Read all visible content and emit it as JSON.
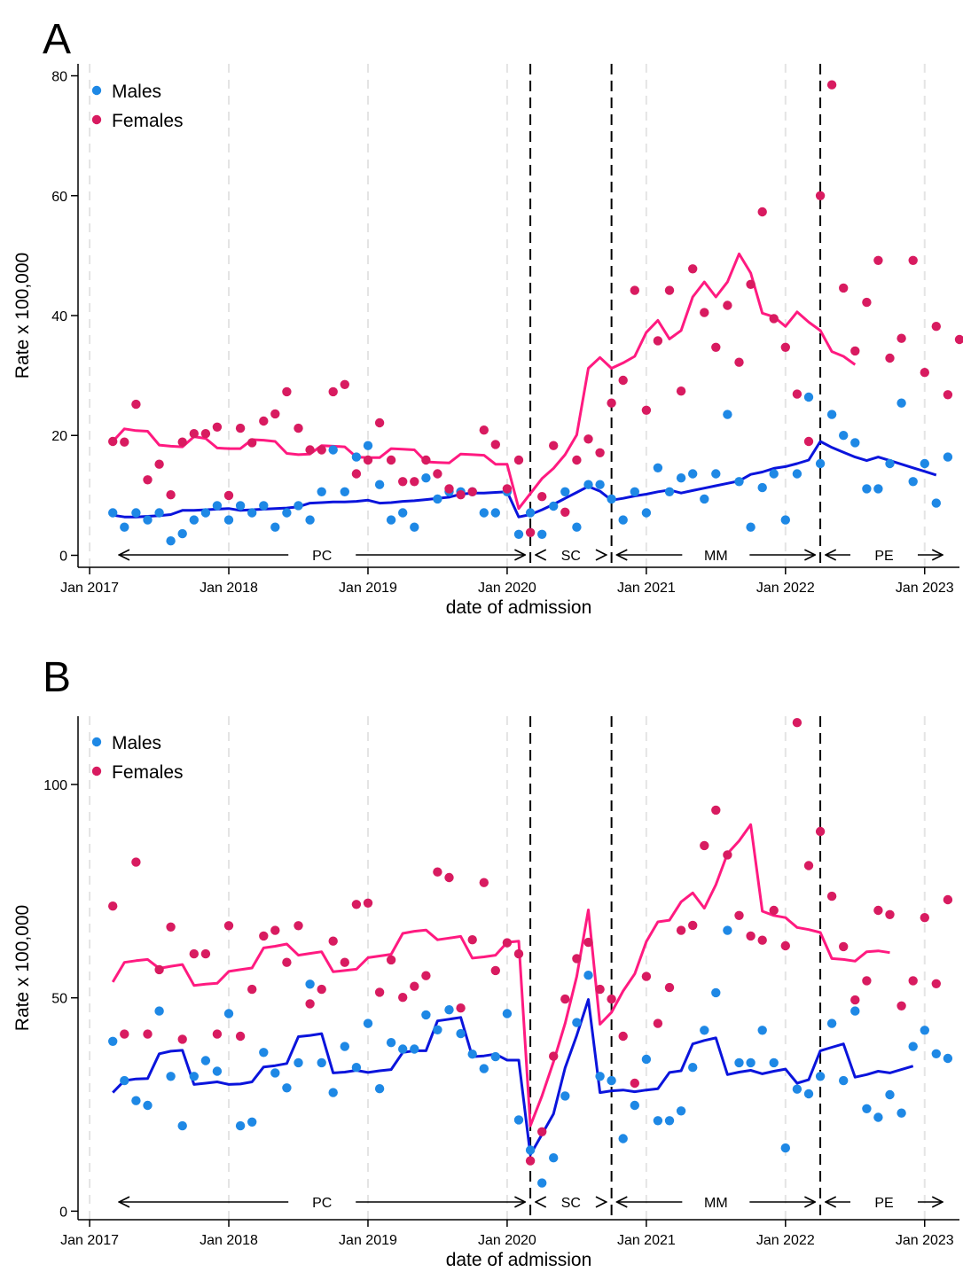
{
  "chart_data": [
    {
      "panel_label": "A",
      "type": "scatter",
      "xlabel": "date of admission",
      "ylabel": "Rate x 100,000",
      "xlim": [
        "2016-12",
        "2023-04"
      ],
      "ylim": [
        -2,
        82
      ],
      "yticks": [
        0,
        20,
        40,
        60,
        80
      ],
      "xticks": [
        {
          "date": "2017-01",
          "label": "Jan 2017"
        },
        {
          "date": "2018-01",
          "label": "Jan 2018"
        },
        {
          "date": "2019-01",
          "label": "Jan 2019"
        },
        {
          "date": "2020-01",
          "label": "Jan 2020"
        },
        {
          "date": "2021-01",
          "label": "Jan 2021"
        },
        {
          "date": "2022-01",
          "label": "Jan 2022"
        },
        {
          "date": "2023-01",
          "label": "Jan 2023"
        }
      ],
      "grid": "vertical dashed at January ticks",
      "legend_position": "top-left",
      "period_breaks": [
        "2020-03",
        "2020-10",
        "2022-04"
      ],
      "periods": [
        {
          "label": "PC",
          "start": "2017-04",
          "end": "2020-03"
        },
        {
          "label": "SC",
          "start": "2020-03",
          "end": "2020-10"
        },
        {
          "label": "MM",
          "start": "2020-10",
          "end": "2022-04"
        },
        {
          "label": "PE",
          "start": "2022-04",
          "end": "2023-03"
        }
      ],
      "start_month": "2017-03",
      "series": [
        {
          "name": "Males",
          "color": "#1e88e5",
          "line_color": "#0a14dc",
          "points": [
            7.1,
            4.7,
            7.1,
            5.9,
            7.1,
            2.4,
            3.6,
            5.9,
            7.1,
            8.3,
            5.9,
            8.3,
            7.1,
            8.3,
            4.7,
            7.1,
            8.3,
            5.9,
            10.6,
            17.6,
            10.6,
            16.4,
            18.3,
            11.8,
            5.9,
            7.1,
            4.7,
            12.9,
            9.4,
            10.6,
            10.6,
            10.6,
            7.1,
            7.1,
            10.6,
            3.5,
            7.1,
            3.5,
            8.2,
            10.6,
            4.7,
            11.8,
            11.8,
            9.4,
            5.9,
            10.6,
            7.1,
            14.6,
            10.6,
            12.9,
            13.6,
            9.4,
            13.6,
            23.5,
            12.3,
            4.7,
            11.3,
            13.6,
            5.9,
            13.6,
            26.4,
            15.3,
            23.5,
            20.0,
            18.8,
            11.1,
            11.1,
            15.3,
            25.4,
            12.3,
            15.3,
            8.7,
            16.4
          ],
          "trend": [
            6.7,
            6.4,
            6.4,
            6.5,
            6.6,
            6.8,
            7.5,
            7.5,
            7.6,
            7.7,
            7.8,
            7.5,
            7.6,
            7.7,
            7.8,
            7.9,
            8.1,
            8.7,
            8.8,
            8.9,
            8.9,
            9.0,
            9.2,
            8.7,
            8.8,
            9.0,
            9.1,
            9.3,
            9.5,
            9.7,
            10.2,
            10.4,
            10.4,
            10.5,
            10.6,
            6.4,
            6.8,
            7.6,
            8.5,
            9.5,
            10.5,
            11.5,
            10.7,
            9.2,
            9.5,
            9.9,
            10.2,
            10.6,
            10.9,
            10.4,
            10.8,
            11.2,
            11.6,
            12.0,
            12.4,
            13.5,
            13.9,
            14.5,
            14.8,
            15.3,
            15.9,
            19.0,
            18.0,
            17.2,
            16.4,
            15.8,
            16.4,
            15.8,
            15.2,
            14.6,
            14.0,
            13.4
          ],
          "trend_start": "2017-03"
        },
        {
          "name": "Females",
          "color": "#d81b60",
          "line_color": "#ff1a80",
          "points": [
            19.0,
            18.9,
            25.2,
            12.6,
            15.2,
            10.1,
            18.9,
            20.3,
            20.3,
            21.4,
            10.0,
            21.2,
            18.8,
            22.4,
            23.6,
            27.3,
            21.2,
            17.6,
            17.6,
            27.3,
            28.5,
            13.6,
            15.9,
            22.1,
            15.9,
            12.3,
            12.3,
            15.9,
            13.6,
            11.1,
            10.1,
            10.6,
            20.9,
            18.5,
            11.1,
            15.9,
            3.8,
            9.8,
            18.3,
            7.2,
            15.9,
            19.4,
            17.1,
            25.4,
            29.2,
            44.2,
            24.2,
            35.8,
            44.2,
            27.4,
            47.8,
            40.5,
            34.7,
            41.7,
            32.2,
            45.2,
            57.3,
            39.5,
            34.7,
            26.9,
            19.0,
            60.0,
            78.5,
            44.6,
            34.1,
            42.2,
            49.2,
            32.9,
            36.2,
            49.2,
            30.5,
            38.2,
            26.8,
            36.0
          ],
          "trend": [
            19.0,
            21.1,
            20.8,
            20.7,
            18.4,
            18.2,
            18.1,
            19.8,
            19.5,
            17.9,
            17.8,
            17.8,
            19.3,
            19.2,
            19.0,
            17.0,
            16.8,
            16.9,
            18.3,
            18.2,
            18.1,
            16.4,
            16.3,
            16.3,
            17.8,
            17.7,
            17.6,
            15.6,
            15.5,
            15.4,
            16.9,
            16.8,
            16.7,
            15.2,
            15.2,
            7.8,
            10.3,
            12.8,
            14.5,
            16.8,
            20.1,
            31.2,
            33.0,
            31.2,
            32.1,
            33.2,
            37.2,
            39.2,
            36.1,
            37.5,
            43.1,
            45.6,
            43.1,
            45.6,
            50.3,
            47.1,
            40.4,
            39.8,
            38.2,
            40.6,
            38.9,
            37.5,
            34.0,
            33.2,
            31.8
          ],
          "trend_start": "2017-03"
        }
      ]
    },
    {
      "panel_label": "B",
      "type": "scatter",
      "xlabel": "date of admission",
      "ylabel": "Rate x 100,000",
      "xlim": [
        "2016-12",
        "2023-04"
      ],
      "ylim": [
        -2,
        116
      ],
      "yticks": [
        0,
        50,
        100
      ],
      "xticks": [
        {
          "date": "2017-01",
          "label": "Jan 2017"
        },
        {
          "date": "2018-01",
          "label": "Jan 2018"
        },
        {
          "date": "2019-01",
          "label": "Jan 2019"
        },
        {
          "date": "2020-01",
          "label": "Jan 2020"
        },
        {
          "date": "2021-01",
          "label": "Jan 2021"
        },
        {
          "date": "2022-01",
          "label": "Jan 2022"
        },
        {
          "date": "2023-01",
          "label": "Jan 2023"
        }
      ],
      "grid": "vertical dashed at January ticks",
      "legend_position": "top-left",
      "period_breaks": [
        "2020-03",
        "2020-10",
        "2022-04"
      ],
      "periods": [
        {
          "label": "PC",
          "start": "2017-04",
          "end": "2020-03"
        },
        {
          "label": "SC",
          "start": "2020-03",
          "end": "2020-10"
        },
        {
          "label": "MM",
          "start": "2020-10",
          "end": "2022-04"
        },
        {
          "label": "PE",
          "start": "2022-04",
          "end": "2023-03"
        }
      ],
      "start_month": "2017-03",
      "series": [
        {
          "name": "Males",
          "color": "#1e88e5",
          "line_color": "#0a14dc",
          "points": [
            39.8,
            30.6,
            25.9,
            24.8,
            46.9,
            31.6,
            20.0,
            31.6,
            35.3,
            32.8,
            46.3,
            20.0,
            20.9,
            37.2,
            32.4,
            28.9,
            34.8,
            53.2,
            34.8,
            27.8,
            38.6,
            33.7,
            44.0,
            28.7,
            39.5,
            38.0,
            38.0,
            46.0,
            42.5,
            47.2,
            41.6,
            36.8,
            33.4,
            36.2,
            46.3,
            21.4,
            14.3,
            6.6,
            12.5,
            27.0,
            44.2,
            55.3,
            31.6,
            30.6,
            17.0,
            24.8,
            35.6,
            21.2,
            21.2,
            23.5,
            33.7,
            42.4,
            51.2,
            65.8,
            34.8,
            34.8,
            42.4,
            34.8,
            14.8,
            28.6,
            27.5,
            31.6,
            44.0,
            30.6,
            46.9,
            24.0,
            22.0,
            27.3,
            23.0,
            38.6,
            42.4,
            36.9,
            35.8
          ],
          "trend": [
            27.8,
            30.6,
            31.0,
            31.1,
            36.9,
            37.5,
            37.7,
            29.7,
            30.0,
            30.3,
            29.7,
            29.8,
            30.3,
            33.8,
            34.1,
            34.6,
            40.9,
            41.2,
            41.6,
            32.4,
            32.6,
            33.0,
            32.5,
            32.9,
            33.2,
            37.2,
            37.6,
            37.6,
            44.6,
            45.0,
            45.4,
            36.2,
            36.4,
            36.8,
            35.4,
            35.4,
            13.2,
            18.0,
            22.8,
            33.6,
            41.2,
            49.6,
            27.8,
            28.2,
            28.4,
            28.0,
            28.4,
            28.7,
            32.5,
            32.9,
            39.2,
            40.0,
            40.6,
            32.0,
            32.6,
            33.0,
            32.2,
            32.8,
            33.3,
            30.0,
            30.8,
            37.6,
            38.4,
            39.2,
            31.4,
            32.0,
            32.8,
            32.4,
            33.2,
            34.0
          ],
          "trend_start": "2017-03"
        },
        {
          "name": "Females",
          "color": "#d81b60",
          "line_color": "#ff1a80",
          "points": [
            71.5,
            41.5,
            81.8,
            41.5,
            56.6,
            66.6,
            40.3,
            60.3,
            60.3,
            41.5,
            66.9,
            41.0,
            52.0,
            64.5,
            65.8,
            58.3,
            66.9,
            48.6,
            52.0,
            63.3,
            58.3,
            71.9,
            72.2,
            51.3,
            58.9,
            50.1,
            52.7,
            55.2,
            79.5,
            78.2,
            47.6,
            63.6,
            77.0,
            56.4,
            62.9,
            60.3,
            11.8,
            18.6,
            36.3,
            49.7,
            59.2,
            63.0,
            52.0,
            49.7,
            41.0,
            30.0,
            55.0,
            44.0,
            52.4,
            65.8,
            67.0,
            85.7,
            94.0,
            83.5,
            69.3,
            64.5,
            63.5,
            70.5,
            62.2,
            114.5,
            81.0,
            89.0,
            73.8,
            62.0,
            49.5,
            54.0,
            70.5,
            69.5,
            48.1,
            54.0,
            68.8,
            53.3,
            73.0
          ],
          "trend": [
            53.7,
            58.3,
            58.7,
            59.0,
            56.9,
            57.4,
            57.8,
            52.9,
            53.2,
            53.4,
            56.2,
            56.6,
            57.0,
            61.7,
            62.1,
            62.6,
            60.0,
            60.4,
            60.8,
            56.1,
            56.4,
            56.7,
            59.4,
            59.8,
            60.2,
            65.1,
            65.6,
            65.9,
            63.6,
            64.0,
            64.4,
            59.3,
            59.6,
            60.0,
            63.0,
            63.3,
            20.0,
            27.0,
            35.0,
            44.0,
            55.0,
            70.6,
            43.8,
            46.6,
            51.6,
            55.6,
            63.2,
            67.8,
            68.2,
            72.5,
            74.6,
            71.0,
            76.5,
            83.8,
            86.8,
            90.6,
            70.3,
            69.3,
            68.8,
            66.5,
            66.0,
            65.3,
            59.2,
            59.0,
            58.6,
            60.8,
            61.0,
            60.6
          ],
          "trend_start": "2017-03"
        }
      ]
    }
  ]
}
